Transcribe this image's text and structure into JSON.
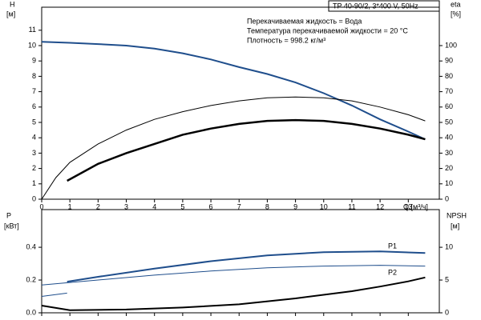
{
  "chart_data": [
    {
      "type": "line",
      "title": "TP 40-90/2, 3*400 V, 50Hz",
      "annotations": [
        "Перекачиваемая жидкость = Вода",
        "Температура перекачиваемой жидкости = 20 °C",
        "Плотность = 998.2 кг/м³"
      ],
      "y_label": "H",
      "y_unit": "[м]",
      "y2_label": "eta",
      "y2_unit": "[%]",
      "x_label": "Q [м³/ч]",
      "xlim": [
        0,
        14.1
      ],
      "xticks": [
        0,
        1,
        2,
        3,
        4,
        5,
        6,
        7,
        8,
        9,
        10,
        11,
        12,
        13
      ],
      "ylim": [
        0,
        12.5
      ],
      "yticks": [
        0,
        1,
        2,
        3,
        4,
        5,
        6,
        7,
        8,
        9,
        10,
        11
      ],
      "y2lim": [
        0,
        125
      ],
      "y2ticks": [
        0,
        10,
        20,
        30,
        40,
        50,
        60,
        70,
        80,
        90,
        100
      ],
      "series": [
        {
          "color": "#1f4e8c",
          "line_width": 2,
          "axis": "y",
          "x": [
            0,
            1,
            2,
            3,
            4,
            5,
            6,
            7,
            8,
            9,
            10,
            11,
            12,
            13,
            13.6
          ],
          "values": [
            10.25,
            10.18,
            10.1,
            10.0,
            9.8,
            9.5,
            9.1,
            8.6,
            8.15,
            7.6,
            6.9,
            6.1,
            5.2,
            4.4,
            3.9
          ]
        },
        {
          "color": "#000000",
          "line_width": 1,
          "axis": "y2",
          "x": [
            0,
            0.5,
            1,
            2,
            3,
            4,
            5,
            6,
            7,
            8,
            9,
            10,
            11,
            12,
            13,
            13.6
          ],
          "values": [
            0,
            14,
            24,
            36,
            45,
            52,
            57,
            61,
            64,
            66,
            66.5,
            66,
            64,
            60,
            55,
            51
          ]
        },
        {
          "color": "#000000",
          "line_width": 2.5,
          "axis": "y2",
          "x": [
            0.9,
            2,
            3,
            4,
            5,
            6,
            7,
            8,
            9,
            10,
            11,
            12,
            13,
            13.6
          ],
          "values": [
            12,
            23,
            30,
            36,
            42,
            46,
            49,
            51,
            51.5,
            51,
            49,
            46,
            42,
            39
          ]
        }
      ]
    },
    {
      "type": "line",
      "y_label": "P",
      "y_unit": "[кВт]",
      "y2_label": "NPSH",
      "y2_unit": "[м]",
      "annotations": [
        "P1",
        "P2"
      ],
      "xlim": [
        0,
        14.1
      ],
      "xticks": [
        0,
        1,
        2,
        3,
        4,
        5,
        6,
        7,
        8,
        9,
        10,
        11,
        12,
        13
      ],
      "ylim": [
        0,
        0.63
      ],
      "yticks": [
        {
          "value": 0,
          "label": "0.0"
        },
        0.2,
        0.4
      ],
      "y2lim": [
        0,
        15.75
      ],
      "y2ticks": [
        0,
        5,
        10
      ],
      "series": [
        {
          "color": "#1f4e8c",
          "line_width": 2,
          "axis": "y",
          "x": [
            0.9,
            2,
            4,
            6,
            8,
            10,
            12,
            13.6
          ],
          "values": [
            0.19,
            0.22,
            0.27,
            0.315,
            0.35,
            0.37,
            0.375,
            0.365
          ]
        },
        {
          "color": "#1f4e8c",
          "line_width": 1,
          "axis": "y",
          "x": [
            0,
            2,
            4,
            6,
            8,
            10,
            12,
            13.6
          ],
          "values": [
            0.17,
            0.2,
            0.23,
            0.255,
            0.275,
            0.285,
            0.29,
            0.285
          ]
        },
        {
          "color": "#1f4e8c",
          "line_width": 1,
          "axis": "y",
          "x": [
            0,
            0.9
          ],
          "values": [
            0.1,
            0.12
          ]
        },
        {
          "color": "#000000",
          "line_width": 2,
          "axis": "y2",
          "x": [
            0,
            1,
            3,
            5,
            7,
            9,
            11,
            12,
            13,
            13.6
          ],
          "values": [
            1.1,
            0.4,
            0.5,
            0.8,
            1.3,
            2.2,
            3.3,
            4.0,
            4.8,
            5.4
          ]
        }
      ]
    }
  ]
}
